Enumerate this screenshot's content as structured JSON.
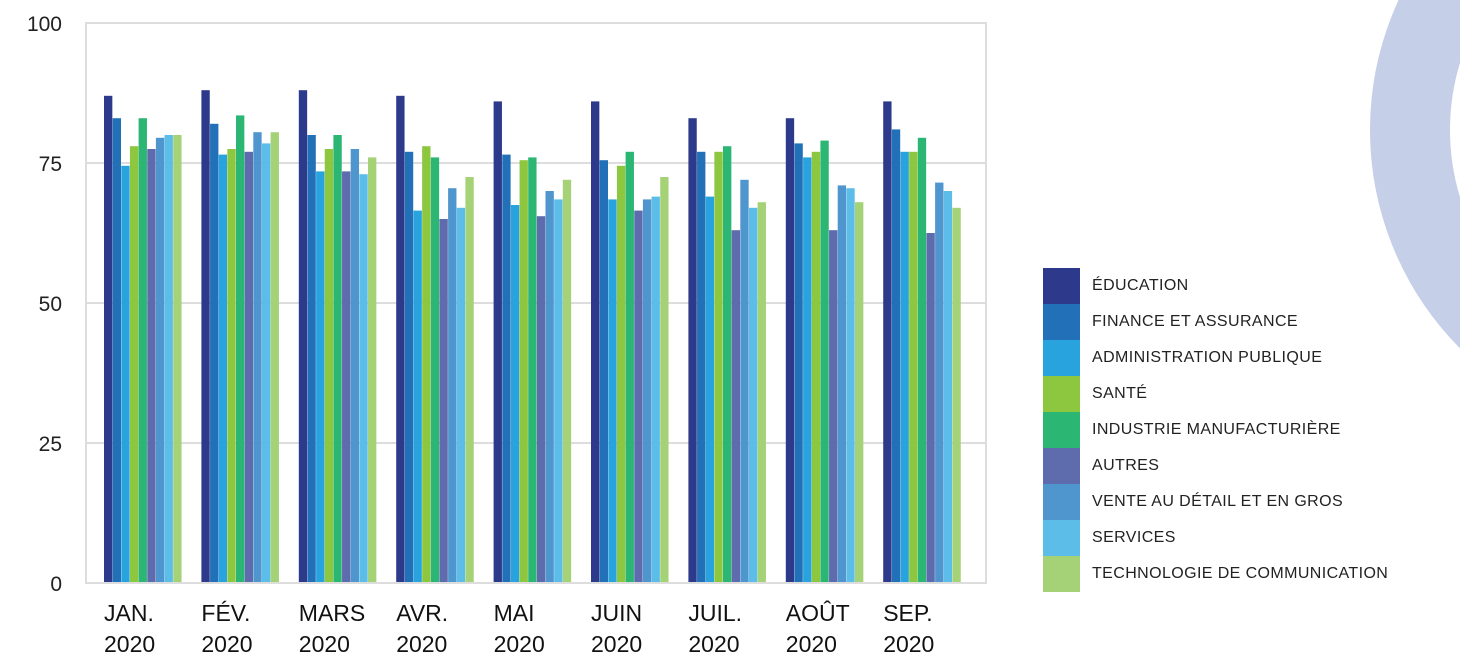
{
  "chart_data": {
    "type": "bar",
    "title": "",
    "xlabel": "",
    "ylabel": "",
    "ylim": [
      0,
      100
    ],
    "yticks": [
      0,
      25,
      50,
      75,
      100
    ],
    "grid": true,
    "legend_position": "right",
    "categories": [
      [
        "JAN.",
        "2020"
      ],
      [
        "FÉV.",
        "2020"
      ],
      [
        "MARS",
        "2020"
      ],
      [
        "AVR.",
        "2020"
      ],
      [
        "MAI",
        "2020"
      ],
      [
        "JUIN",
        "2020"
      ],
      [
        "JUIL.",
        "2020"
      ],
      [
        "AOÛT",
        "2020"
      ],
      [
        "SEP.",
        "2020"
      ]
    ],
    "series": [
      {
        "name": "ÉDUCATION",
        "color": "#2d3a8c",
        "values": [
          87,
          88,
          88,
          87,
          86,
          86,
          83,
          83,
          86
        ]
      },
      {
        "name": "FINANCE ET ASSURANCE",
        "color": "#2271b8",
        "values": [
          83,
          82,
          80,
          77,
          76.5,
          75.5,
          77,
          78.5,
          81
        ]
      },
      {
        "name": "ADMINISTRATION PUBLIQUE",
        "color": "#29a3dd",
        "values": [
          74.5,
          76.5,
          73.5,
          66.5,
          67.5,
          68.5,
          69,
          76,
          77
        ]
      },
      {
        "name": "SANTÉ",
        "color": "#8dc63f",
        "values": [
          78,
          77.5,
          77.5,
          78,
          75.5,
          74.5,
          77,
          77,
          77
        ]
      },
      {
        "name": "INDUSTRIE MANUFACTURIÈRE",
        "color": "#2bb673",
        "values": [
          83,
          83.5,
          80,
          76,
          76,
          77,
          78,
          79,
          79.5
        ]
      },
      {
        "name": "AUTRES",
        "color": "#5e6bad",
        "values": [
          77.5,
          77,
          73.5,
          65,
          65.5,
          66.5,
          63,
          63,
          62.5
        ]
      },
      {
        "name": "VENTE AU DÉTAIL ET EN GROS",
        "color": "#4f96cf",
        "values": [
          79.5,
          80.5,
          77.5,
          70.5,
          70,
          68.5,
          72,
          71,
          71.5
        ]
      },
      {
        "name": "SERVICES",
        "color": "#5cbde8",
        "values": [
          80,
          78.5,
          73,
          67,
          68.5,
          69,
          67,
          70.5,
          70
        ]
      },
      {
        "name": "TECHNOLOGIE DE COMMUNICATION",
        "color": "#a5d277",
        "values": [
          80,
          80.5,
          76,
          72.5,
          72,
          72.5,
          68,
          68,
          67
        ]
      }
    ]
  },
  "decoration": {
    "ring_color": "#c5cfe8"
  }
}
